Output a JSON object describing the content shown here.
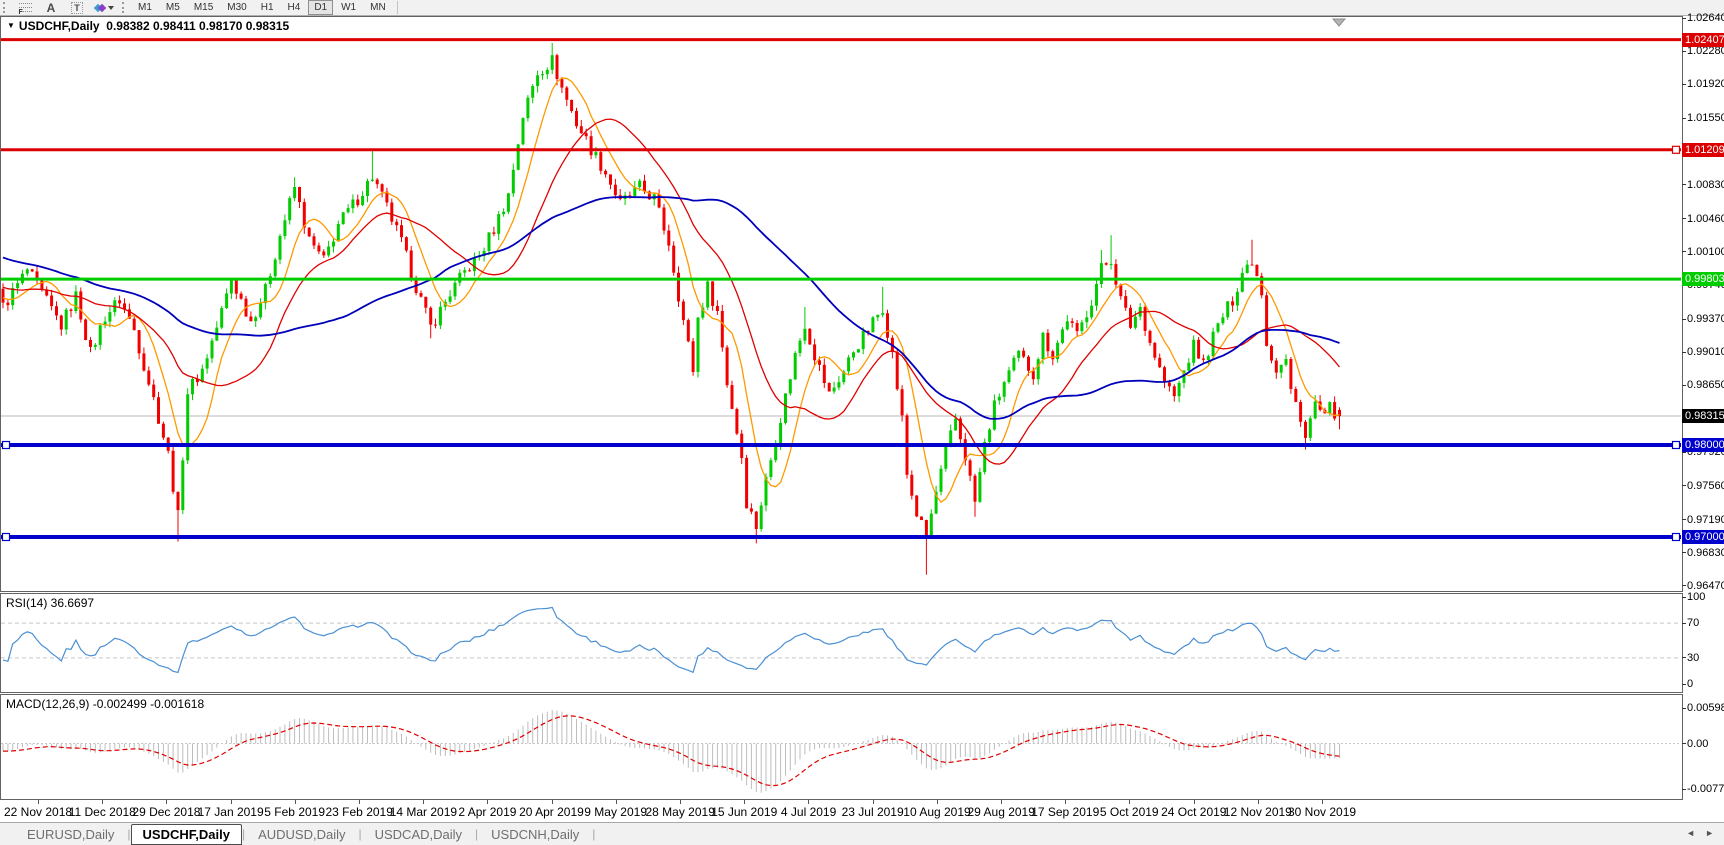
{
  "toolbar": {
    "tools": [
      {
        "name": "fibonacci-icon",
        "glyph": "F"
      },
      {
        "name": "text-icon",
        "glyph": "A"
      },
      {
        "name": "text-label-icon",
        "glyph": "T"
      },
      {
        "name": "arrows-icon",
        "glyph": ""
      }
    ],
    "timeframes": [
      "M1",
      "M5",
      "M15",
      "M30",
      "H1",
      "H4",
      "D1",
      "W1",
      "MN"
    ],
    "active_timeframe": "D1"
  },
  "chart": {
    "marker": "▼",
    "symbol": "USDCHF,Daily",
    "ohlc_text": "0.98382 0.98411 0.98170 0.98315",
    "ohlc": {
      "open": 0.98382,
      "high": 0.98411,
      "low": 0.9817,
      "close": 0.98315
    },
    "colors": {
      "up": "#00cc00",
      "down": "#f20000",
      "ma_fast": "#ff9900",
      "ma_mid": "#e00000",
      "ma_slow": "#0000bb",
      "current_line": "#b9b9b9"
    },
    "axis_ticks": [
      "1.02640",
      "1.02280",
      "1.01920",
      "1.01550",
      "1.01190",
      "1.00830",
      "1.00460",
      "1.00100",
      "0.99740",
      "0.99370",
      "0.99010",
      "0.98650",
      "0.98280",
      "0.97920",
      "0.97560",
      "0.97190",
      "0.96830",
      "0.96470"
    ],
    "hlines": [
      {
        "price": 1.02407,
        "label": "1.02407",
        "color": "#dd0000",
        "thickness": 3,
        "handles": []
      },
      {
        "price": 1.01209,
        "label": "1.01209",
        "color": "#dd0000",
        "thickness": 3,
        "handles": [
          "right"
        ]
      },
      {
        "price": 0.99803,
        "label": "0.99803",
        "color": "#00cd00",
        "thickness": 3,
        "handles": []
      },
      {
        "price": 0.98,
        "label": "0.98000",
        "color": "#0000cd",
        "thickness": 4,
        "handles": [
          "left",
          "right"
        ]
      },
      {
        "price": 0.97,
        "label": "0.97000",
        "color": "#0000cd",
        "thickness": 4,
        "handles": [
          "left",
          "right"
        ]
      }
    ],
    "current_price": {
      "value": 0.98315,
      "label": "0.98315",
      "box_color": "#000000"
    },
    "dates": [
      "22 Nov 2018",
      "11 Dec 2018",
      "29 Dec 2018",
      "17 Jan 2019",
      "5 Feb 2019",
      "23 Feb 2019",
      "14 Mar 2019",
      "2 Apr 2019",
      "20 Apr 2019",
      "9 May 2019",
      "28 May 2019",
      "15 Jun 2019",
      "4 Jul 2019",
      "23 Jul 2019",
      "10 Aug 2019",
      "29 Aug 2019",
      "17 Sep 2019",
      "5 Oct 2019",
      "24 Oct 2019",
      "12 Nov 2019",
      "30 Nov 2019"
    ],
    "price_path": {
      "candle_count": 276,
      "waypoints": [
        [
          0,
          0.995
        ],
        [
          5,
          0.999
        ],
        [
          12,
          0.993
        ],
        [
          15,
          0.9962
        ],
        [
          18,
          0.99
        ],
        [
          21,
          0.994
        ],
        [
          24,
          0.9958
        ],
        [
          27,
          0.9925
        ],
        [
          31,
          0.985
        ],
        [
          34,
          0.979
        ],
        [
          36,
          0.9722
        ],
        [
          38,
          0.9858
        ],
        [
          41,
          0.9882
        ],
        [
          44,
          0.9928
        ],
        [
          47,
          0.998
        ],
        [
          51,
          0.9935
        ],
        [
          54,
          0.9968
        ],
        [
          57,
          1.0028
        ],
        [
          60,
          1.008
        ],
        [
          63,
          1.0022
        ],
        [
          66,
          1.0
        ],
        [
          69,
          1.004
        ],
        [
          73,
          1.0068
        ],
        [
          76,
          1.0092
        ],
        [
          79,
          1.0058
        ],
        [
          82,
          1.002
        ],
        [
          85,
          0.9972
        ],
        [
          88,
          0.9928
        ],
        [
          92,
          0.9965
        ],
        [
          95,
          0.9988
        ],
        [
          98,
          1.0005
        ],
        [
          101,
          1.0035
        ],
        [
          104,
          1.0072
        ],
        [
          107,
          1.0158
        ],
        [
          110,
          1.0205
        ],
        [
          113,
          1.0218
        ],
        [
          115,
          1.0188
        ],
        [
          118,
          1.015
        ],
        [
          121,
          1.0122
        ],
        [
          124,
          1.0096
        ],
        [
          127,
          1.0062
        ],
        [
          131,
          1.008
        ],
        [
          134,
          1.0068
        ],
        [
          137,
          1.002
        ],
        [
          140,
          0.9935
        ],
        [
          142,
          0.9882
        ],
        [
          143,
          0.9938
        ],
        [
          145,
          0.9972
        ],
        [
          147,
          0.9945
        ],
        [
          149,
          0.9868
        ],
        [
          152,
          0.9788
        ],
        [
          153,
          0.9738
        ],
        [
          155,
          0.9712
        ],
        [
          157,
          0.9762
        ],
        [
          160,
          0.983
        ],
        [
          163,
          0.9898
        ],
        [
          165,
          0.9932
        ],
        [
          167,
          0.9898
        ],
        [
          170,
          0.9855
        ],
        [
          173,
          0.988
        ],
        [
          175,
          0.9903
        ],
        [
          178,
          0.9925
        ],
        [
          181,
          0.995
        ],
        [
          183,
          0.9898
        ],
        [
          185,
          0.9828
        ],
        [
          186,
          0.9768
        ],
        [
          188,
          0.9725
        ],
        [
          190,
          0.97
        ],
        [
          192,
          0.9748
        ],
        [
          194,
          0.9792
        ],
        [
          196,
          0.9828
        ],
        [
          198,
          0.9788
        ],
        [
          200,
          0.9738
        ],
        [
          202,
          0.98
        ],
        [
          204,
          0.9842
        ],
        [
          206,
          0.9868
        ],
        [
          209,
          0.9898
        ],
        [
          212,
          0.9878
        ],
        [
          214,
          0.9918
        ],
        [
          216,
          0.9898
        ],
        [
          219,
          0.9938
        ],
        [
          221,
          0.9918
        ],
        [
          224,
          0.9958
        ],
        [
          226,
          0.9992
        ],
        [
          228,
          1.0002
        ],
        [
          230,
          0.9958
        ],
        [
          232,
          0.993
        ],
        [
          234,
          0.995
        ],
        [
          236,
          0.9912
        ],
        [
          239,
          0.9868
        ],
        [
          241,
          0.9852
        ],
        [
          243,
          0.988
        ],
        [
          245,
          0.9908
        ],
        [
          247,
          0.9888
        ],
        [
          249,
          0.9918
        ],
        [
          251,
          0.994
        ],
        [
          253,
          0.9958
        ],
        [
          255,
          0.9988
        ],
        [
          257,
          1.0002
        ],
        [
          259,
          0.9968
        ],
        [
          260,
          0.9912
        ],
        [
          262,
          0.9882
        ],
        [
          264,
          0.9892
        ],
        [
          265,
          0.9858
        ],
        [
          267,
          0.9832
        ],
        [
          268,
          0.9808
        ],
        [
          270,
          0.9845
        ],
        [
          272,
          0.9828
        ],
        [
          273,
          0.984
        ],
        [
          275,
          0.98315
        ]
      ],
      "extremes": [
        [
          36,
          "l",
          0.9695
        ],
        [
          60,
          "h",
          1.0091
        ],
        [
          76,
          "h",
          1.0122
        ],
        [
          88,
          "l",
          0.9916
        ],
        [
          113,
          "h",
          1.0237
        ],
        [
          155,
          "l",
          0.9693
        ],
        [
          165,
          "h",
          0.995
        ],
        [
          181,
          "h",
          0.9972
        ],
        [
          190,
          "l",
          0.9659
        ],
        [
          200,
          "l",
          0.9722
        ],
        [
          226,
          "h",
          1.0012
        ],
        [
          228,
          "h",
          1.0028
        ],
        [
          257,
          "h",
          1.0023
        ],
        [
          268,
          "l",
          0.9795
        ]
      ]
    }
  },
  "rsi": {
    "label": "RSI(14) 36.6697",
    "period": 14,
    "value": 36.6697,
    "levels": [
      70,
      30
    ],
    "scale_labels": [
      "100",
      "70",
      "30",
      "0"
    ],
    "color": "#4a8fd4",
    "level_color": "#c8c8c8"
  },
  "macd": {
    "label": "MACD(12,26,9) -0.002499 -0.001618",
    "macd_value": -0.002499,
    "signal_value": -0.001618,
    "scale_labels": [
      "0.005986",
      "0.00",
      "-0.00773"
    ],
    "histogram_color": "#bdbdbd",
    "signal_color": "#e00000"
  },
  "tabs": {
    "items": [
      {
        "label": "EURUSD,Daily",
        "active": false
      },
      {
        "label": "USDCHF,Daily",
        "active": true
      },
      {
        "label": "AUDUSD,Daily",
        "active": false
      },
      {
        "label": "USDCAD,Daily",
        "active": false
      },
      {
        "label": "USDCNH,Daily",
        "active": false
      }
    ],
    "scroll_left": "◄",
    "scroll_right": "►"
  }
}
